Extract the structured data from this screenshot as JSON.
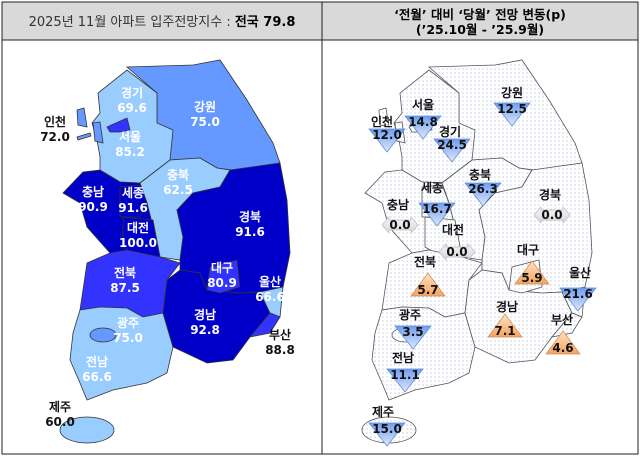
{
  "header": {
    "left_prefix": "2025년 11월 아파트 입주전망지수 : ",
    "left_bold": "전국 79.8",
    "right_line1": "‘전월’ 대비 ‘당월’ 전망 변동(p)",
    "right_line2": "(’25.10월  -  ’25.9월)"
  },
  "colors": {
    "level_90_plus": "#0000c8",
    "level_80_90": "#3333ff",
    "level_70_80": "#6699ff",
    "level_60_70": "#99ccff",
    "increase": "#f4a460",
    "decrease": "#6f9ef0",
    "no_change": "#e0e0e0"
  },
  "index_map": [
    {
      "name": "경기",
      "value": "69.6"
    },
    {
      "name": "서울",
      "value": "85.2"
    },
    {
      "name": "인천",
      "value": "72.0"
    },
    {
      "name": "강원",
      "value": "75.0"
    },
    {
      "name": "충북",
      "value": "62.5"
    },
    {
      "name": "충남",
      "value": "90.9"
    },
    {
      "name": "세종",
      "value": "91.6"
    },
    {
      "name": "대전",
      "value": "100.0"
    },
    {
      "name": "경북",
      "value": "91.6"
    },
    {
      "name": "전북",
      "value": "87.5"
    },
    {
      "name": "대구",
      "value": "80.9"
    },
    {
      "name": "울산",
      "value": "66.6"
    },
    {
      "name": "경남",
      "value": "92.8"
    },
    {
      "name": "광주",
      "value": "75.0"
    },
    {
      "name": "부산",
      "value": "88.8"
    },
    {
      "name": "전남",
      "value": "66.6"
    },
    {
      "name": "제주",
      "value": "60.0"
    }
  ],
  "change_map": [
    {
      "name": "강원",
      "value": "12.5",
      "direction": "down"
    },
    {
      "name": "서울",
      "value": "14.8",
      "direction": "down"
    },
    {
      "name": "인천",
      "value": "12.0",
      "direction": "down"
    },
    {
      "name": "경기",
      "value": "24.5",
      "direction": "down"
    },
    {
      "name": "충북",
      "value": "26.3",
      "direction": "down"
    },
    {
      "name": "세종",
      "value": "16.7",
      "direction": "down"
    },
    {
      "name": "충남",
      "value": "0.0",
      "direction": "flat"
    },
    {
      "name": "경북",
      "value": "0.0",
      "direction": "flat"
    },
    {
      "name": "대전",
      "value": "0.0",
      "direction": "flat"
    },
    {
      "name": "전북",
      "value": "5.7",
      "direction": "up"
    },
    {
      "name": "대구",
      "value": "5.9",
      "direction": "up"
    },
    {
      "name": "울산",
      "value": "21.6",
      "direction": "down"
    },
    {
      "name": "경남",
      "value": "7.1",
      "direction": "up"
    },
    {
      "name": "부산",
      "value": "4.6",
      "direction": "up"
    },
    {
      "name": "광주",
      "value": "3.5",
      "direction": "down"
    },
    {
      "name": "전남",
      "value": "11.1",
      "direction": "down"
    },
    {
      "name": "제주",
      "value": "15.0",
      "direction": "down"
    }
  ]
}
